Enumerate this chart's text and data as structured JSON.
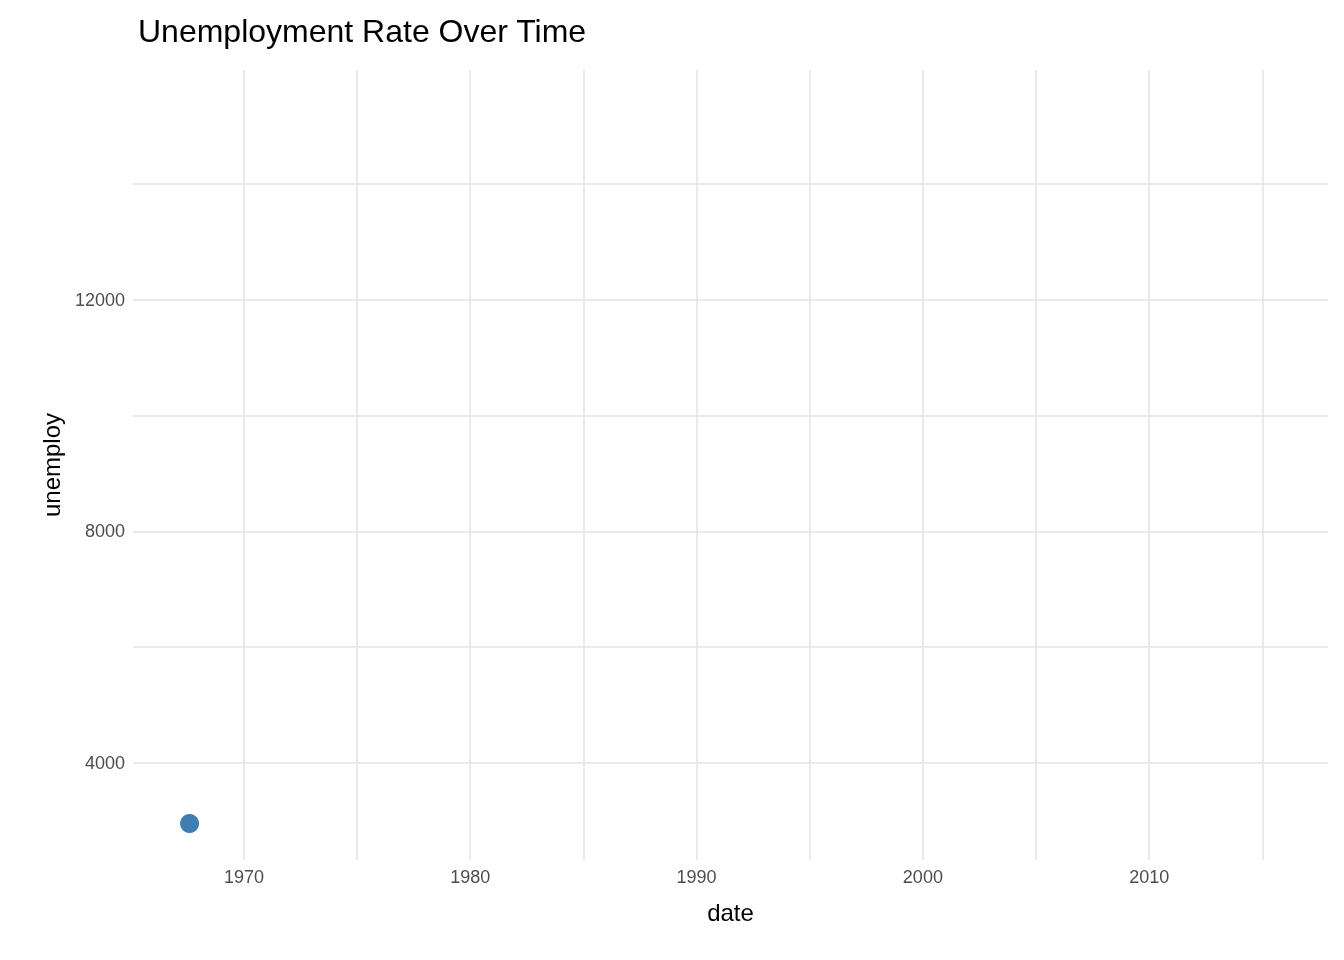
{
  "chart_data": {
    "type": "scatter",
    "title": "Unemployment Rate Over Time",
    "xlabel": "date",
    "ylabel": "unemploy",
    "x": [
      1967.6
    ],
    "values": [
      2950
    ],
    "color": "#0f5ca0",
    "xlim": [
      1965.1,
      2017.9
    ],
    "ylim": [
      2320,
      15970
    ],
    "xticks": [
      1970,
      {
        "value": 1975,
        "label": null
      },
      1980,
      {
        "value": 1985,
        "label": null
      },
      1990,
      {
        "value": 1995,
        "label": null
      },
      2000,
      {
        "value": 2005,
        "label": null
      },
      2010,
      {
        "value": 2015,
        "label": null
      }
    ],
    "yticks": [
      4000,
      {
        "value": 6000,
        "label": null
      },
      8000,
      {
        "value": 10000,
        "label": null
      },
      12000,
      {
        "value": 14000,
        "label": null
      }
    ],
    "grid": true,
    "marker": "circle"
  }
}
